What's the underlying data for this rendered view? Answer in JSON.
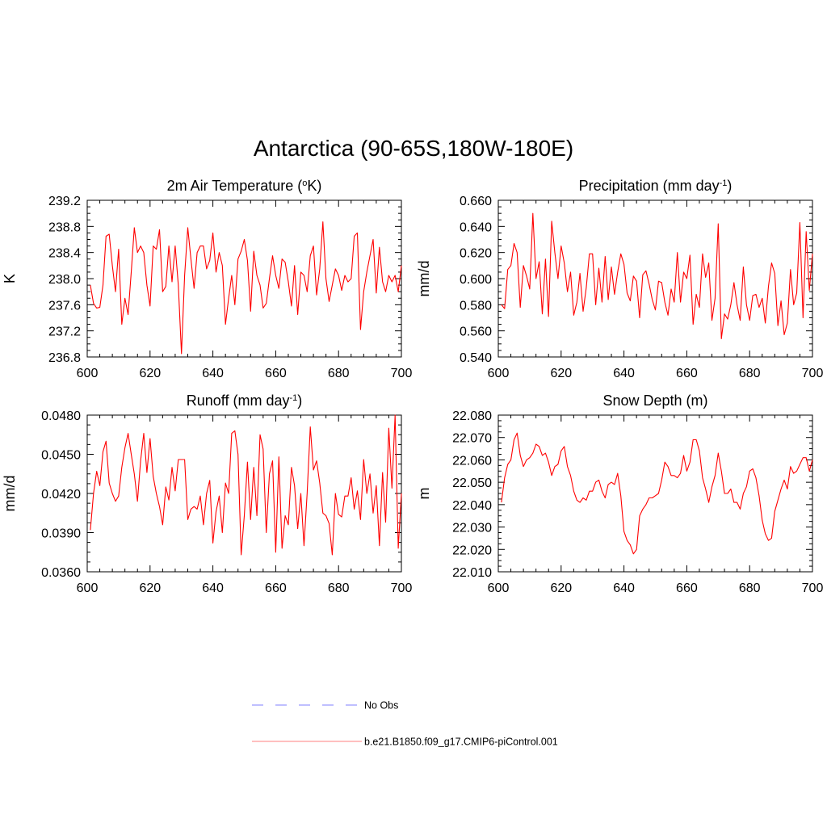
{
  "title": "Antarctica (90-65S,180W-180E)",
  "colors": {
    "model_line": "#ff0000",
    "obs_line": "#9999ff",
    "axis": "#000000"
  },
  "legend": [
    {
      "label": "No Obs",
      "style": "dashed",
      "color": "#9999ff"
    },
    {
      "label": "b.e21.B1850.f09_g17.CMIP6-piControl.001",
      "style": "solid",
      "color": "#ff0000"
    }
  ],
  "chart_data": [
    {
      "type": "line",
      "title_main": "2m Air Temperature (",
      "title_sup": "o",
      "title_end": "K)",
      "ylabel": "K",
      "xlim": [
        600,
        700
      ],
      "ylim": [
        236.8,
        239.2
      ],
      "xticks": [
        600,
        620,
        640,
        660,
        680,
        700
      ],
      "yticks": [
        236.8,
        237.2,
        237.6,
        238.0,
        238.4,
        238.8,
        239.2
      ],
      "ytick_labels": [
        "236.8",
        "237.2",
        "237.6",
        "238.0",
        "238.4",
        "238.8",
        "239.2"
      ],
      "series": [
        {
          "name": "b.e21.B1850.f09_g17.CMIP6-piControl.001",
          "x_start": 601,
          "x_step": 1,
          "values": [
            237.9,
            237.62,
            237.55,
            237.56,
            237.9,
            238.65,
            238.68,
            238.2,
            237.8,
            238.45,
            237.3,
            237.7,
            237.45,
            238.1,
            238.78,
            238.4,
            238.5,
            238.4,
            237.9,
            237.58,
            238.5,
            238.45,
            238.75,
            237.8,
            237.88,
            238.5,
            237.95,
            238.5,
            237.9,
            236.85,
            238.05,
            238.78,
            238.3,
            237.85,
            238.4,
            238.5,
            238.5,
            238.15,
            238.28,
            238.7,
            238.1,
            238.4,
            238.2,
            237.3,
            237.7,
            238.05,
            237.6,
            238.3,
            238.42,
            238.6,
            238.28,
            237.5,
            238.42,
            238.05,
            237.9,
            237.55,
            237.62,
            238.0,
            238.35,
            238.05,
            237.85,
            238.3,
            238.25,
            237.95,
            237.58,
            238.2,
            237.45,
            238.1,
            238.05,
            237.8,
            238.35,
            238.5,
            237.75,
            238.15,
            238.87,
            238.0,
            237.65,
            237.9,
            238.15,
            238.05,
            237.82,
            238.05,
            237.95,
            238.0,
            238.65,
            238.7,
            237.22,
            237.8,
            238.1,
            238.35,
            238.6,
            237.78,
            238.48,
            237.95,
            237.8,
            238.05,
            237.95,
            238.05,
            237.8,
            238.2
          ]
        }
      ]
    },
    {
      "type": "line",
      "title_main": "Precipitation (mm day",
      "title_sup": "-1",
      "title_end": ")",
      "ylabel": "mm/d",
      "xlim": [
        600,
        700
      ],
      "ylim": [
        0.54,
        0.66
      ],
      "xticks": [
        600,
        620,
        640,
        660,
        680,
        700
      ],
      "yticks": [
        0.54,
        0.56,
        0.58,
        0.6,
        0.62,
        0.64,
        0.66
      ],
      "ytick_labels": [
        "0.540",
        "0.560",
        "0.580",
        "0.600",
        "0.620",
        "0.640",
        "0.660"
      ],
      "series": [
        {
          "name": "b.e21.B1850.f09_g17.CMIP6-piControl.001",
          "x_start": 601,
          "x_step": 1,
          "values": [
            0.58,
            0.577,
            0.607,
            0.61,
            0.627,
            0.62,
            0.578,
            0.61,
            0.602,
            0.592,
            0.65,
            0.6,
            0.613,
            0.573,
            0.615,
            0.571,
            0.644,
            0.62,
            0.6,
            0.625,
            0.612,
            0.59,
            0.605,
            0.572,
            0.582,
            0.604,
            0.575,
            0.593,
            0.619,
            0.619,
            0.58,
            0.608,
            0.582,
            0.617,
            0.584,
            0.609,
            0.588,
            0.605,
            0.619,
            0.611,
            0.589,
            0.583,
            0.602,
            0.598,
            0.57,
            0.603,
            0.606,
            0.596,
            0.584,
            0.576,
            0.598,
            0.597,
            0.582,
            0.572,
            0.592,
            0.582,
            0.62,
            0.582,
            0.605,
            0.6,
            0.618,
            0.565,
            0.588,
            0.578,
            0.619,
            0.601,
            0.612,
            0.568,
            0.585,
            0.642,
            0.554,
            0.573,
            0.569,
            0.58,
            0.597,
            0.58,
            0.568,
            0.609,
            0.58,
            0.568,
            0.587,
            0.588,
            0.578,
            0.585,
            0.566,
            0.594,
            0.612,
            0.604,
            0.564,
            0.583,
            0.557,
            0.566,
            0.607,
            0.58,
            0.589,
            0.643,
            0.57,
            0.636,
            0.591,
            0.619
          ]
        }
      ]
    },
    {
      "type": "line",
      "title_main": "Runoff (mm day",
      "title_sup": "-1",
      "title_end": ")",
      "ylabel": "mm/d",
      "xlim": [
        600,
        700
      ],
      "ylim": [
        0.036,
        0.048
      ],
      "xticks": [
        600,
        620,
        640,
        660,
        680,
        700
      ],
      "yticks": [
        0.036,
        0.039,
        0.042,
        0.045,
        0.048
      ],
      "ytick_labels": [
        "0.0360",
        "0.0390",
        "0.0420",
        "0.0450",
        "0.0480"
      ],
      "series": [
        {
          "name": "b.e21.B1850.f09_g17.CMIP6-piControl.001",
          "x_start": 601,
          "x_step": 1,
          "values": [
            0.0392,
            0.042,
            0.0437,
            0.0426,
            0.0452,
            0.046,
            0.0428,
            0.042,
            0.0414,
            0.0418,
            0.044,
            0.0455,
            0.0466,
            0.045,
            0.0435,
            0.0414,
            0.0445,
            0.0466,
            0.0436,
            0.0462,
            0.0433,
            0.042,
            0.041,
            0.0396,
            0.0425,
            0.0415,
            0.044,
            0.0422,
            0.0446,
            0.0446,
            0.0446,
            0.04,
            0.0408,
            0.041,
            0.0408,
            0.0418,
            0.0396,
            0.042,
            0.043,
            0.0382,
            0.0406,
            0.0418,
            0.039,
            0.0428,
            0.042,
            0.0466,
            0.0468,
            0.045,
            0.0373,
            0.0403,
            0.0444,
            0.04,
            0.044,
            0.0403,
            0.0465,
            0.0454,
            0.039,
            0.0435,
            0.0445,
            0.0375,
            0.0448,
            0.0378,
            0.0403,
            0.0396,
            0.044,
            0.0426,
            0.0393,
            0.042,
            0.038,
            0.042,
            0.0471,
            0.0438,
            0.0445,
            0.0428,
            0.0405,
            0.0403,
            0.0397,
            0.0373,
            0.042,
            0.0404,
            0.0402,
            0.0418,
            0.0418,
            0.0432,
            0.0408,
            0.0422,
            0.04,
            0.0446,
            0.042,
            0.0435,
            0.0405,
            0.0426,
            0.038,
            0.0436,
            0.0398,
            0.047,
            0.0424,
            0.048,
            0.0378,
            0.042
          ]
        }
      ]
    },
    {
      "type": "line",
      "title_main": "Snow Depth (m)",
      "title_sup": "",
      "title_end": "",
      "ylabel": "m",
      "xlim": [
        600,
        700
      ],
      "ylim": [
        22.01,
        22.08
      ],
      "xticks": [
        600,
        620,
        640,
        660,
        680,
        700
      ],
      "yticks": [
        22.01,
        22.02,
        22.03,
        22.04,
        22.05,
        22.06,
        22.07,
        22.08
      ],
      "ytick_labels": [
        "22.010",
        "22.020",
        "22.030",
        "22.040",
        "22.050",
        "22.060",
        "22.070",
        "22.080"
      ],
      "series": [
        {
          "name": "b.e21.B1850.f09_g17.CMIP6-piControl.001",
          "x_start": 601,
          "x_step": 1,
          "values": [
            22.041,
            22.052,
            22.058,
            22.06,
            22.069,
            22.072,
            22.062,
            22.057,
            22.06,
            22.061,
            22.063,
            22.067,
            22.066,
            22.062,
            22.063,
            22.059,
            22.053,
            22.057,
            22.058,
            22.064,
            22.066,
            22.057,
            22.053,
            22.046,
            22.042,
            22.041,
            22.043,
            22.042,
            22.046,
            22.046,
            22.05,
            22.051,
            22.046,
            22.043,
            22.049,
            22.05,
            22.049,
            22.054,
            22.044,
            22.028,
            22.024,
            22.022,
            22.018,
            22.02,
            22.035,
            22.038,
            22.04,
            22.043,
            22.043,
            22.044,
            22.045,
            22.051,
            22.059,
            22.057,
            22.053,
            22.053,
            22.052,
            22.054,
            22.062,
            22.055,
            22.059,
            22.069,
            22.069,
            22.064,
            22.052,
            22.047,
            22.041,
            22.048,
            22.053,
            22.063,
            22.055,
            22.045,
            22.045,
            22.047,
            22.041,
            22.041,
            22.038,
            22.045,
            22.048,
            22.055,
            22.056,
            22.052,
            22.044,
            22.033,
            22.027,
            22.024,
            22.025,
            22.037,
            22.042,
            22.047,
            22.051,
            22.047,
            22.057,
            22.054,
            22.055,
            22.058,
            22.061,
            22.061,
            22.055,
            22.06
          ]
        }
      ]
    }
  ]
}
